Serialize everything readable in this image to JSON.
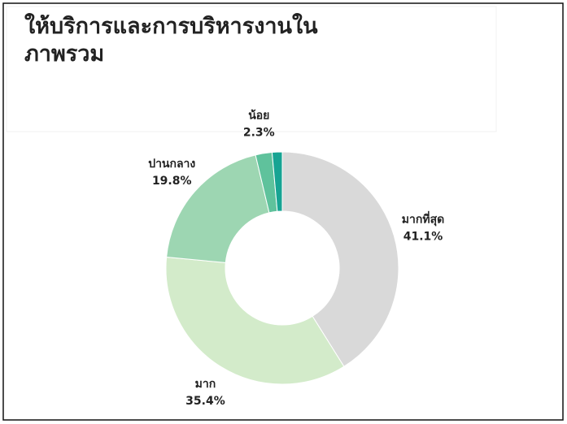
{
  "chart_data": {
    "type": "donut",
    "title": "ให้บริการและการบริหารงานในภาพรวม",
    "categories": [
      "มากที่สุด",
      "มาก",
      "ปานกลาง",
      "น้อย",
      null
    ],
    "values": [
      41.1,
      35.4,
      19.8,
      2.3,
      1.4
    ],
    "value_labels": [
      "41.1%",
      "35.4%",
      "19.8%",
      "2.3%",
      null
    ],
    "colors": [
      "#d9d9d9",
      "#d3ebca",
      "#9dd6b2",
      "#5fc29c",
      "#17a493"
    ]
  }
}
